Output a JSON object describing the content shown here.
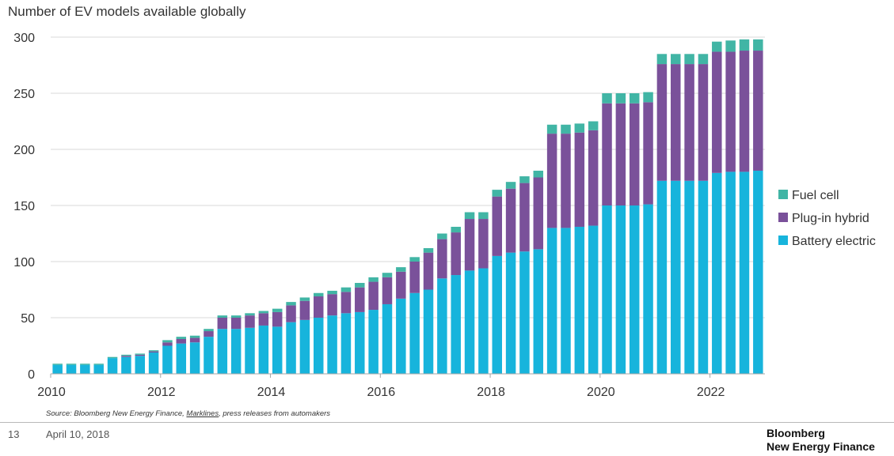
{
  "chart_data": {
    "type": "bar",
    "stacked": true,
    "title": "Number of EV models available globally",
    "xlabel": "",
    "ylabel": "",
    "x_tick_labels": [
      "2010",
      "2012",
      "2014",
      "2016",
      "2018",
      "2020",
      "2022"
    ],
    "y_tick_labels": [
      "0",
      "50",
      "100",
      "150",
      "200",
      "250",
      "300"
    ],
    "ylim": [
      0,
      300
    ],
    "grid": "horizontal",
    "legend_position": "right",
    "categories": [
      "2010Q1",
      "2010Q2",
      "2010Q3",
      "2010Q4",
      "2011Q1",
      "2011Q2",
      "2011Q3",
      "2011Q4",
      "2012Q1",
      "2012Q2",
      "2012Q3",
      "2012Q4",
      "2013Q1",
      "2013Q2",
      "2013Q3",
      "2013Q4",
      "2014Q1",
      "2014Q2",
      "2014Q3",
      "2014Q4",
      "2015Q1",
      "2015Q2",
      "2015Q3",
      "2015Q4",
      "2016Q1",
      "2016Q2",
      "2016Q3",
      "2016Q4",
      "2017Q1",
      "2017Q2",
      "2017Q3",
      "2017Q4",
      "2018Q1",
      "2018Q2",
      "2018Q3",
      "2018Q4",
      "2019Q1",
      "2019Q2",
      "2019Q3",
      "2019Q4",
      "2020Q1",
      "2020Q2",
      "2020Q3",
      "2020Q4",
      "2021Q1",
      "2021Q2",
      "2021Q3",
      "2021Q4",
      "2022Q1",
      "2022Q2",
      "2022Q3",
      "2022Q4"
    ],
    "series": [
      {
        "name": "Battery electric",
        "color": "#17b4dc",
        "values": [
          8,
          8,
          8,
          8,
          14,
          15,
          16,
          19,
          25,
          27,
          28,
          33,
          40,
          40,
          41,
          43,
          42,
          46,
          48,
          50,
          52,
          54,
          55,
          57,
          62,
          67,
          72,
          75,
          85,
          88,
          92,
          94,
          105,
          108,
          109,
          111,
          130,
          130,
          131,
          132,
          150,
          150,
          150,
          151,
          172,
          172,
          172,
          172,
          179,
          180,
          180,
          181
        ]
      },
      {
        "name": "Plug-in hybrid",
        "color": "#7a519a",
        "values": [
          0,
          0,
          0,
          0,
          0,
          1,
          1,
          1,
          3,
          4,
          4,
          5,
          10,
          10,
          11,
          11,
          13,
          15,
          17,
          19,
          19,
          19,
          22,
          25,
          24,
          24,
          28,
          33,
          35,
          38,
          46,
          44,
          53,
          57,
          61,
          64,
          84,
          84,
          84,
          85,
          91,
          91,
          91,
          91,
          104,
          104,
          104,
          104,
          108,
          107,
          108,
          107
        ]
      },
      {
        "name": "Fuel cell",
        "color": "#41b5a5",
        "values": [
          1,
          1,
          1,
          1,
          1,
          1,
          1,
          1,
          2,
          2,
          2,
          2,
          2,
          2,
          2,
          2,
          3,
          3,
          3,
          3,
          3,
          4,
          4,
          4,
          4,
          4,
          4,
          4,
          5,
          5,
          6,
          6,
          6,
          6,
          6,
          6,
          8,
          8,
          8,
          8,
          9,
          9,
          9,
          9,
          9,
          9,
          9,
          9,
          9,
          10,
          10,
          10
        ]
      }
    ]
  },
  "legend": {
    "items": [
      {
        "label": "Fuel cell",
        "color": "#41b5a5"
      },
      {
        "label": "Plug-in hybrid",
        "color": "#7a519a"
      },
      {
        "label": "Battery electric",
        "color": "#17b4dc"
      }
    ]
  },
  "source": {
    "prefix": "Source: Bloomberg New Energy Finance, ",
    "underlined": "Marklines",
    "suffix": ", press releases from automakers"
  },
  "footer": {
    "page_number": "13",
    "date": "April 10, 2018",
    "brand_line1": "Bloomberg",
    "brand_line2": "New Energy Finance"
  }
}
